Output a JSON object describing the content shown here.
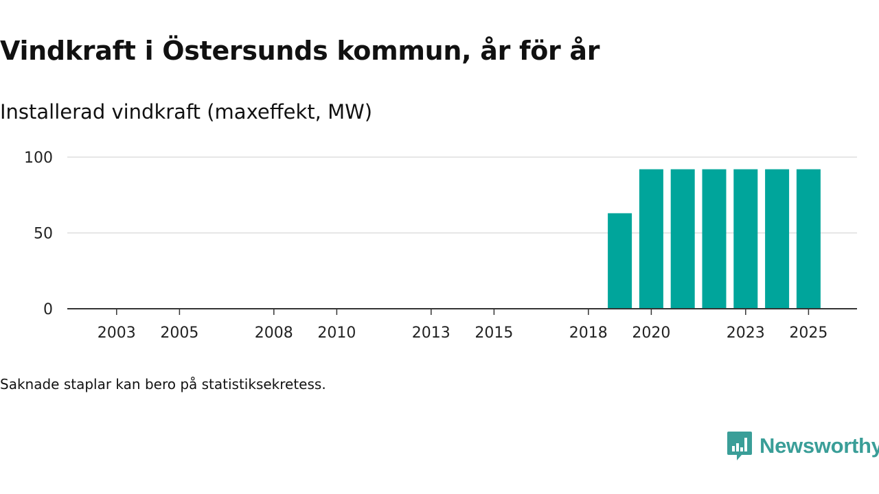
{
  "title": "Vindkraft i Östersunds kommun, år för år",
  "subtitle": "Installerad vindkraft (maxeffekt, MW)",
  "note": "Saknade staplar kan bero på statistiksekretess.",
  "brand": {
    "name": "Newsworthy",
    "logo_icon": "newsworthy-logo-icon"
  },
  "colors": {
    "bar": "#00a59b",
    "grid": "#dddddd",
    "axis": "#333333",
    "brand": "#3a9e98"
  },
  "chart_data": {
    "type": "bar",
    "title": "Vindkraft i Östersunds kommun, år för år",
    "ylabel": "Installerad vindkraft (maxeffekt, MW)",
    "xlabel": "",
    "categories": [
      2002,
      2003,
      2004,
      2005,
      2006,
      2007,
      2008,
      2009,
      2010,
      2011,
      2012,
      2013,
      2014,
      2015,
      2016,
      2017,
      2018,
      2019,
      2020,
      2021,
      2022,
      2023,
      2024,
      2025
    ],
    "values": [
      0,
      0,
      0,
      0,
      0,
      0,
      0,
      0,
      0,
      0,
      0,
      0,
      0,
      0,
      0,
      0,
      0,
      63,
      92,
      92,
      92,
      92,
      92,
      92
    ],
    "x_tick_labels": [
      "2003",
      "2005",
      "2008",
      "2010",
      "2013",
      "2015",
      "2018",
      "2020",
      "2023",
      "2025"
    ],
    "y_ticks": [
      "0",
      "50",
      "100"
    ],
    "ylim": [
      0,
      100
    ],
    "grid": true
  }
}
